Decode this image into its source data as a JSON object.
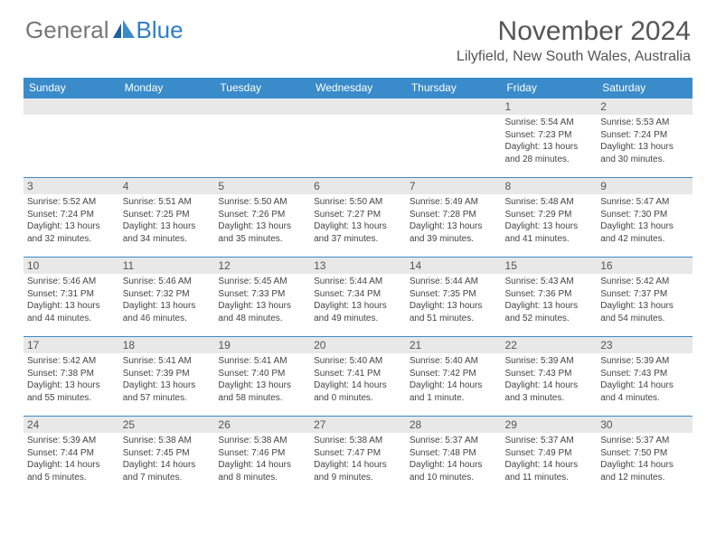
{
  "brand": {
    "part1": "General",
    "part2": "Blue"
  },
  "title": "November 2024",
  "location": "Lilyfield, New South Wales, Australia",
  "colors": {
    "header_bg": "#3a8bc9",
    "daynum_bg": "#e8e8e8",
    "border": "#3a8bc9",
    "brand_blue": "#2f7fc2"
  },
  "weekdays": [
    "Sunday",
    "Monday",
    "Tuesday",
    "Wednesday",
    "Thursday",
    "Friday",
    "Saturday"
  ],
  "weeks": [
    [
      null,
      null,
      null,
      null,
      null,
      {
        "d": "1",
        "sr": "5:54 AM",
        "ss": "7:23 PM",
        "dl": "13 hours and 28 minutes."
      },
      {
        "d": "2",
        "sr": "5:53 AM",
        "ss": "7:24 PM",
        "dl": "13 hours and 30 minutes."
      }
    ],
    [
      {
        "d": "3",
        "sr": "5:52 AM",
        "ss": "7:24 PM",
        "dl": "13 hours and 32 minutes."
      },
      {
        "d": "4",
        "sr": "5:51 AM",
        "ss": "7:25 PM",
        "dl": "13 hours and 34 minutes."
      },
      {
        "d": "5",
        "sr": "5:50 AM",
        "ss": "7:26 PM",
        "dl": "13 hours and 35 minutes."
      },
      {
        "d": "6",
        "sr": "5:50 AM",
        "ss": "7:27 PM",
        "dl": "13 hours and 37 minutes."
      },
      {
        "d": "7",
        "sr": "5:49 AM",
        "ss": "7:28 PM",
        "dl": "13 hours and 39 minutes."
      },
      {
        "d": "8",
        "sr": "5:48 AM",
        "ss": "7:29 PM",
        "dl": "13 hours and 41 minutes."
      },
      {
        "d": "9",
        "sr": "5:47 AM",
        "ss": "7:30 PM",
        "dl": "13 hours and 42 minutes."
      }
    ],
    [
      {
        "d": "10",
        "sr": "5:46 AM",
        "ss": "7:31 PM",
        "dl": "13 hours and 44 minutes."
      },
      {
        "d": "11",
        "sr": "5:46 AM",
        "ss": "7:32 PM",
        "dl": "13 hours and 46 minutes."
      },
      {
        "d": "12",
        "sr": "5:45 AM",
        "ss": "7:33 PM",
        "dl": "13 hours and 48 minutes."
      },
      {
        "d": "13",
        "sr": "5:44 AM",
        "ss": "7:34 PM",
        "dl": "13 hours and 49 minutes."
      },
      {
        "d": "14",
        "sr": "5:44 AM",
        "ss": "7:35 PM",
        "dl": "13 hours and 51 minutes."
      },
      {
        "d": "15",
        "sr": "5:43 AM",
        "ss": "7:36 PM",
        "dl": "13 hours and 52 minutes."
      },
      {
        "d": "16",
        "sr": "5:42 AM",
        "ss": "7:37 PM",
        "dl": "13 hours and 54 minutes."
      }
    ],
    [
      {
        "d": "17",
        "sr": "5:42 AM",
        "ss": "7:38 PM",
        "dl": "13 hours and 55 minutes."
      },
      {
        "d": "18",
        "sr": "5:41 AM",
        "ss": "7:39 PM",
        "dl": "13 hours and 57 minutes."
      },
      {
        "d": "19",
        "sr": "5:41 AM",
        "ss": "7:40 PM",
        "dl": "13 hours and 58 minutes."
      },
      {
        "d": "20",
        "sr": "5:40 AM",
        "ss": "7:41 PM",
        "dl": "14 hours and 0 minutes."
      },
      {
        "d": "21",
        "sr": "5:40 AM",
        "ss": "7:42 PM",
        "dl": "14 hours and 1 minute."
      },
      {
        "d": "22",
        "sr": "5:39 AM",
        "ss": "7:43 PM",
        "dl": "14 hours and 3 minutes."
      },
      {
        "d": "23",
        "sr": "5:39 AM",
        "ss": "7:43 PM",
        "dl": "14 hours and 4 minutes."
      }
    ],
    [
      {
        "d": "24",
        "sr": "5:39 AM",
        "ss": "7:44 PM",
        "dl": "14 hours and 5 minutes."
      },
      {
        "d": "25",
        "sr": "5:38 AM",
        "ss": "7:45 PM",
        "dl": "14 hours and 7 minutes."
      },
      {
        "d": "26",
        "sr": "5:38 AM",
        "ss": "7:46 PM",
        "dl": "14 hours and 8 minutes."
      },
      {
        "d": "27",
        "sr": "5:38 AM",
        "ss": "7:47 PM",
        "dl": "14 hours and 9 minutes."
      },
      {
        "d": "28",
        "sr": "5:37 AM",
        "ss": "7:48 PM",
        "dl": "14 hours and 10 minutes."
      },
      {
        "d": "29",
        "sr": "5:37 AM",
        "ss": "7:49 PM",
        "dl": "14 hours and 11 minutes."
      },
      {
        "d": "30",
        "sr": "5:37 AM",
        "ss": "7:50 PM",
        "dl": "14 hours and 12 minutes."
      }
    ]
  ],
  "labels": {
    "sunrise": "Sunrise: ",
    "sunset": "Sunset: ",
    "daylight": "Daylight: "
  }
}
